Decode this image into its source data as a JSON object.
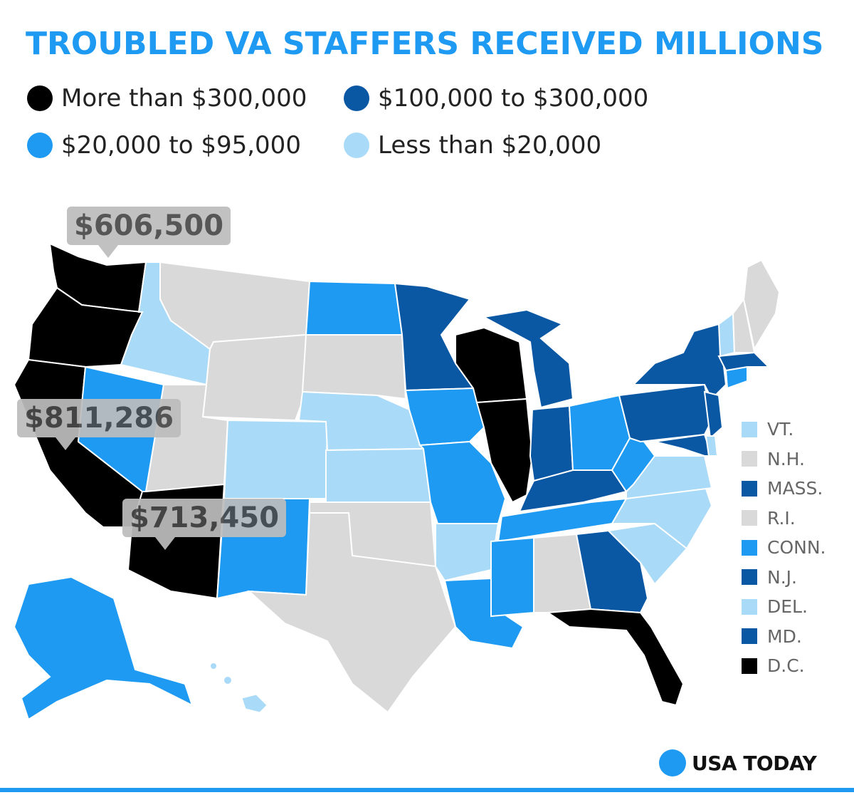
{
  "title": "TROUBLED VA STAFFERS RECEIVED MILLIONS",
  "colors": {
    "more_300k": "#000000",
    "range_100k_300k": "#0a57a3",
    "range_20k_95k": "#1e9af2",
    "less_20k": "#a9daf7",
    "no_data": "#d9d9d9",
    "accent": "#1e9af2"
  },
  "legend": [
    {
      "label": "More than $300,000",
      "color": "#000000"
    },
    {
      "label": "$100,000 to $300,000",
      "color": "#0a57a3"
    },
    {
      "label": "$20,000 to $95,000",
      "color": "#1e9af2"
    },
    {
      "label": "Less than $20,000",
      "color": "#a9daf7"
    }
  ],
  "callouts": {
    "washington": "$606,500",
    "california": "$811,286",
    "arizona": "$713,450"
  },
  "small_states": [
    {
      "label": "VT.",
      "color": "#a9daf7"
    },
    {
      "label": "N.H.",
      "color": "#d9d9d9"
    },
    {
      "label": "MASS.",
      "color": "#0a57a3"
    },
    {
      "label": "R.I.",
      "color": "#d9d9d9"
    },
    {
      "label": "CONN.",
      "color": "#1e9af2"
    },
    {
      "label": "N.J.",
      "color": "#0a57a3"
    },
    {
      "label": "DEL.",
      "color": "#a9daf7"
    },
    {
      "label": "MD.",
      "color": "#0a57a3"
    },
    {
      "label": "D.C.",
      "color": "#000000"
    }
  ],
  "brand": {
    "name": "USA TODAY"
  }
}
